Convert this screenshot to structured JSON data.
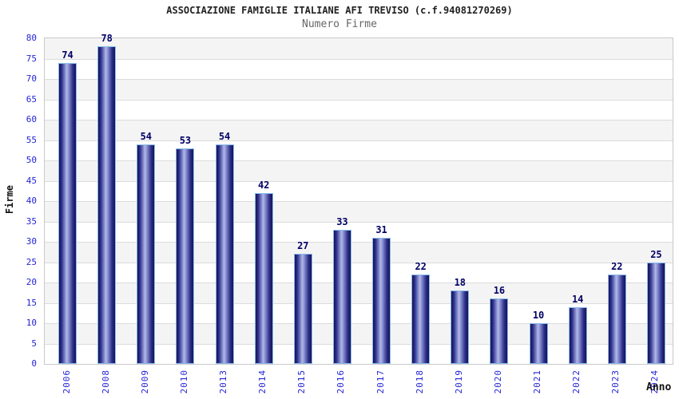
{
  "chart_data": {
    "type": "bar",
    "title": "ASSOCIAZIONE FAMIGLIE ITALIANE AFI TREVISO (c.f.94081270269)",
    "subtitle": "Numero Firme",
    "xlabel": "Anno",
    "ylabel": "Firme",
    "categories": [
      "2006",
      "2008",
      "2009",
      "2010",
      "2013",
      "2014",
      "2015",
      "2016",
      "2017",
      "2018",
      "2019",
      "2020",
      "2021",
      "2022",
      "2023",
      "2024"
    ],
    "values": [
      74,
      78,
      54,
      53,
      54,
      42,
      27,
      33,
      31,
      22,
      18,
      16,
      10,
      14,
      22,
      25
    ],
    "ylim": [
      0,
      80
    ],
    "ytick_step": 5,
    "yticks": [
      0,
      5,
      10,
      15,
      20,
      25,
      30,
      35,
      40,
      45,
      50,
      55,
      60,
      65,
      70,
      75,
      80
    ],
    "grid": "horizontal alternating bands every 5 units, gridline at each tick",
    "legend": "none"
  },
  "colors": {
    "bar_gradient_dark": "#13135a",
    "bar_gradient_mid": "#2e2e88",
    "bar_gradient_light1": "#8e97d6",
    "bar_gradient_light2": "#b3bae6",
    "bar_outline": "#86bae9",
    "value_label": "#000066",
    "tick_label": "#2424d8",
    "axis_title": "#111111",
    "title": "#222222",
    "subtitle": "#666666",
    "band_gray": "#f4f4f4",
    "band_white": "#ffffff",
    "gridline": "#dcdcdc",
    "plot_border": "#c9c9c9",
    "background": "#ffffff"
  }
}
